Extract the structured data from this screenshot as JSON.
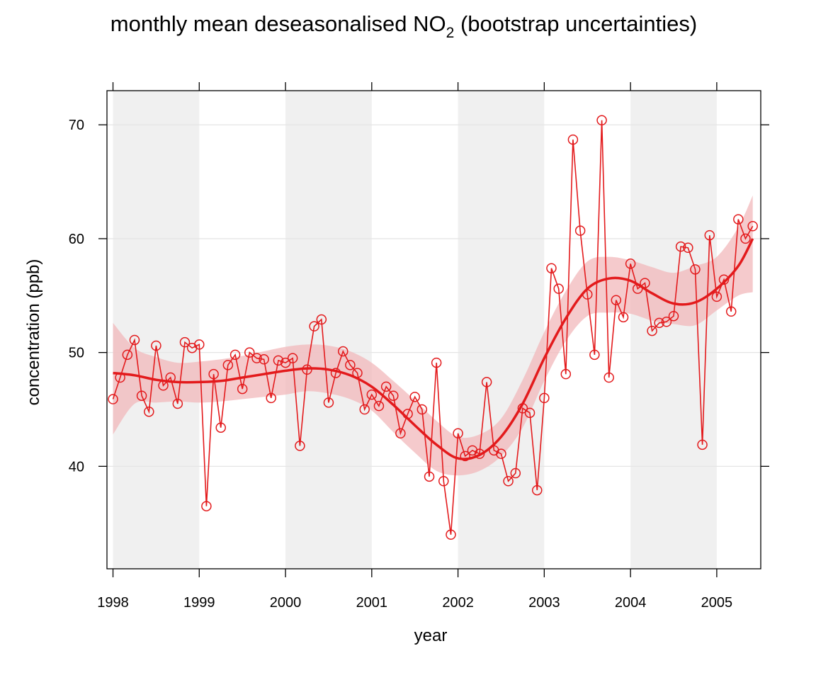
{
  "chart_data": {
    "type": "line",
    "title": "monthly mean deseasonalised NO",
    "title_subscript": "2",
    "title_suffix": " (bootstrap uncertainties)",
    "xlabel": "year",
    "ylabel": "concentration (ppb)",
    "xlim": [
      1997.93,
      2005.51
    ],
    "ylim": [
      31,
      73
    ],
    "x_ticks": [
      1998,
      1999,
      2000,
      2001,
      2002,
      2003,
      2004,
      2005
    ],
    "x_tick_labels": [
      "1998",
      "1999",
      "2000",
      "2001",
      "2002",
      "2003",
      "2004",
      "2005"
    ],
    "y_ticks": [
      40,
      50,
      60,
      70
    ],
    "y_tick_labels": [
      "40",
      "50",
      "60",
      "70"
    ],
    "grid": true,
    "shaded_years": [
      [
        1998,
        1999
      ],
      [
        2000,
        2001
      ],
      [
        2002,
        2003
      ],
      [
        2004,
        2005
      ]
    ],
    "colors": {
      "series": "#e31a1c",
      "band": "#f2b8bb",
      "shade": "#f0f0f0",
      "grid": "#e5e5e5"
    },
    "series": [
      {
        "marker": "open-circle",
        "x": [
          1998.0,
          1998.083,
          1998.167,
          1998.25,
          1998.333,
          1998.417,
          1998.5,
          1998.583,
          1998.667,
          1998.75,
          1998.833,
          1998.917,
          1999.0,
          1999.083,
          1999.167,
          1999.25,
          1999.333,
          1999.417,
          1999.5,
          1999.583,
          1999.667,
          1999.75,
          1999.833,
          1999.917,
          2000.0,
          2000.083,
          2000.167,
          2000.25,
          2000.333,
          2000.417,
          2000.5,
          2000.583,
          2000.667,
          2000.75,
          2000.833,
          2000.917,
          2001.0,
          2001.083,
          2001.167,
          2001.25,
          2001.333,
          2001.417,
          2001.5,
          2001.583,
          2001.667,
          2001.75,
          2001.833,
          2001.917,
          2002.0,
          2002.083,
          2002.167,
          2002.25,
          2002.333,
          2002.417,
          2002.5,
          2002.583,
          2002.667,
          2002.75,
          2002.833,
          2002.917,
          2003.0,
          2003.083,
          2003.167,
          2003.25,
          2003.333,
          2003.417,
          2003.5,
          2003.583,
          2003.667,
          2003.75,
          2003.833,
          2003.917,
          2004.0,
          2004.083,
          2004.167,
          2004.25,
          2004.333,
          2004.417,
          2004.5,
          2004.583,
          2004.667,
          2004.75,
          2004.833,
          2004.917,
          2005.0,
          2005.083,
          2005.167,
          2005.25,
          2005.333,
          2005.417
        ],
        "values": [
          45.9,
          47.8,
          49.8,
          51.1,
          46.2,
          44.8,
          50.6,
          47.1,
          47.8,
          45.5,
          50.9,
          50.4,
          50.7,
          36.5,
          48.1,
          43.4,
          48.9,
          49.8,
          46.8,
          50.0,
          49.5,
          49.4,
          46.0,
          49.3,
          49.1,
          49.5,
          41.8,
          48.5,
          52.3,
          52.9,
          45.6,
          48.2,
          50.1,
          48.9,
          48.2,
          45.0,
          46.3,
          45.3,
          47.0,
          46.2,
          42.9,
          44.6,
          46.1,
          45.0,
          39.1,
          49.1,
          38.7,
          34.0,
          42.9,
          40.9,
          41.4,
          41.1,
          47.4,
          41.4,
          41.1,
          38.7,
          39.4,
          45.1,
          44.7,
          37.9,
          46.0,
          57.4,
          55.6,
          48.1,
          68.7,
          60.7,
          55.1,
          49.8,
          70.4,
          47.8,
          54.6,
          53.1,
          57.8,
          55.6,
          56.1,
          51.9,
          52.6,
          52.7,
          53.2,
          59.3,
          59.2,
          57.3,
          41.9,
          60.3,
          54.9,
          56.4,
          53.6,
          61.7,
          60.0,
          61.1
        ]
      },
      {
        "smooth": true,
        "x": [
          1998.0,
          1998.25,
          1998.5,
          1998.75,
          1999.0,
          1999.25,
          1999.5,
          1999.75,
          2000.0,
          2000.25,
          2000.5,
          2000.75,
          2001.0,
          2001.25,
          2001.5,
          2001.75,
          2002.0,
          2002.25,
          2002.5,
          2002.75,
          2003.0,
          2003.25,
          2003.5,
          2003.75,
          2004.0,
          2004.25,
          2004.5,
          2004.75,
          2005.0,
          2005.25,
          2005.417
        ],
        "values": [
          48.2,
          48.0,
          47.6,
          47.4,
          47.4,
          47.5,
          47.8,
          48.1,
          48.4,
          48.6,
          48.5,
          48.0,
          47.0,
          45.4,
          43.6,
          41.9,
          40.7,
          41.0,
          42.6,
          45.5,
          49.5,
          53.0,
          55.6,
          56.5,
          56.3,
          55.2,
          54.3,
          54.4,
          55.6,
          57.6,
          60.0
        ],
        "lower": [
          42.8,
          45.5,
          45.6,
          45.7,
          45.6,
          45.7,
          45.9,
          46.1,
          46.3,
          46.6,
          46.4,
          45.9,
          44.9,
          43.0,
          41.2,
          39.6,
          39.2,
          39.6,
          40.9,
          43.4,
          47.5,
          51.0,
          53.2,
          53.5,
          53.4,
          52.8,
          52.5,
          52.4,
          53.7,
          55.0,
          55.3
        ],
        "upper": [
          52.6,
          50.4,
          49.6,
          49.1,
          49.2,
          49.4,
          49.7,
          50.1,
          50.5,
          50.7,
          50.6,
          50.1,
          49.1,
          47.5,
          45.8,
          44.0,
          42.6,
          42.8,
          44.2,
          47.6,
          51.8,
          55.4,
          58.0,
          58.4,
          58.1,
          57.5,
          57.0,
          57.6,
          58.4,
          61.0,
          63.8
        ]
      }
    ]
  }
}
